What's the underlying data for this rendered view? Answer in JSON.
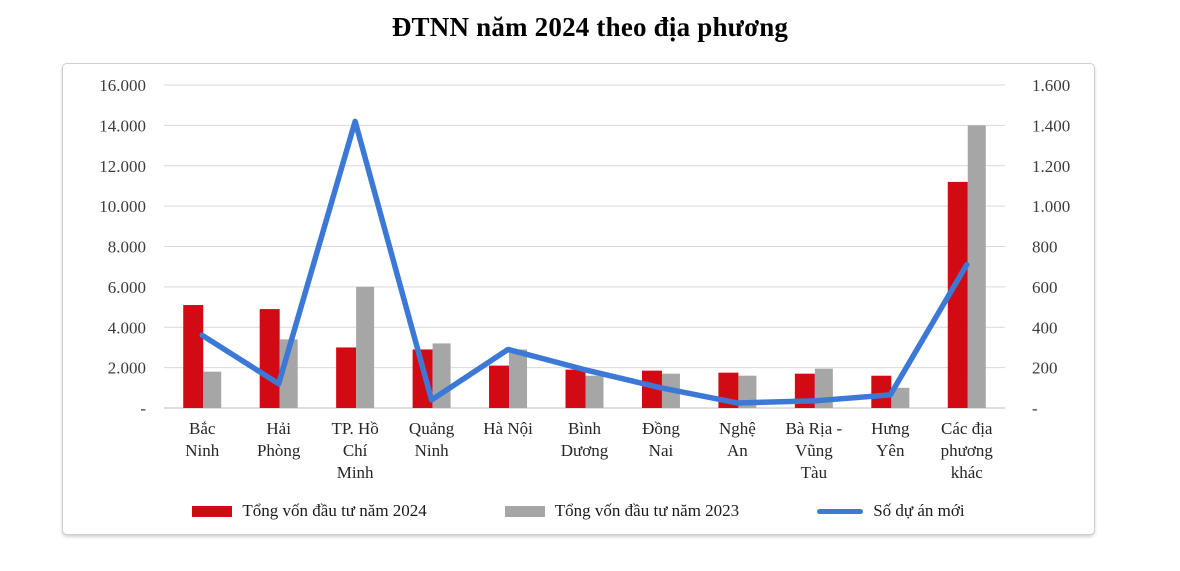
{
  "title": "ĐTNN năm 2024 theo địa phương",
  "colors": {
    "bar_2024": "#d20a13",
    "bar_2023": "#a6a6a6",
    "line_new_projects": "#3c79d6",
    "gridline": "#d9d9d9",
    "axis_line": "#bfbfbf",
    "tick_text": "#3c3c3c",
    "category_text": "#262626"
  },
  "chart_data": {
    "type": "bar",
    "subtype": "combo-bar-line-dual-axis",
    "title": "ĐTNN năm 2024 theo địa phương",
    "grid": true,
    "legend_position": "bottom",
    "categories": [
      "Bắc Ninh",
      "Hải Phòng",
      "TP. Hồ Chí Minh",
      "Quảng Ninh",
      "Hà Nội",
      "Bình Dương",
      "Đồng Nai",
      "Nghệ An",
      "Bà Rịa - Vũng Tàu",
      "Hưng Yên",
      "Các địa phương khác"
    ],
    "category_label_lines": [
      [
        "Bắc",
        "Ninh"
      ],
      [
        "Hải",
        "Phòng"
      ],
      [
        "TP. Hồ",
        "Chí",
        "Minh"
      ],
      [
        "Quảng",
        "Ninh"
      ],
      [
        "Hà Nội"
      ],
      [
        "Bình",
        "Dương"
      ],
      [
        "Đồng",
        "Nai"
      ],
      [
        "Nghệ",
        "An"
      ],
      [
        "Bà Rịa -",
        "Vũng",
        "Tàu"
      ],
      [
        "Hưng",
        "Yên"
      ],
      [
        "Các địa",
        "phương",
        "khác"
      ]
    ],
    "series": [
      {
        "name": "Tổng vốn đầu tư năm 2024",
        "type": "bar",
        "axis": "left",
        "color": "#d20a13",
        "values": [
          5100,
          4900,
          3000,
          2900,
          2100,
          1900,
          1850,
          1750,
          1700,
          1600,
          11200
        ]
      },
      {
        "name": "Tổng vốn đầu tư năm 2023",
        "type": "bar",
        "axis": "left",
        "color": "#a6a6a6",
        "values": [
          1800,
          3400,
          6000,
          3200,
          2900,
          1600,
          1700,
          1600,
          1950,
          1000,
          14000
        ]
      },
      {
        "name": "Số dự án mới",
        "type": "line",
        "axis": "right",
        "color": "#3c79d6",
        "values": [
          360,
          120,
          1420,
          40,
          290,
          190,
          100,
          25,
          35,
          65,
          710
        ]
      }
    ],
    "left_axis": {
      "min": 0,
      "max": 16000,
      "step": 2000,
      "tick_labels_top_to_bottom": [
        "16.000",
        "14.000",
        "12.000",
        "10.000",
        "8.000",
        "6.000",
        "4.000",
        "2.000",
        "-"
      ]
    },
    "right_axis": {
      "min": 0,
      "max": 1600,
      "step": 200,
      "tick_labels_top_to_bottom": [
        "1.600",
        "1.400",
        "1.200",
        "1.000",
        "800",
        "600",
        "400",
        "200",
        "-"
      ]
    }
  },
  "legend": {
    "items": [
      {
        "label": "Tổng vốn đầu tư năm 2024",
        "swatch": "bar",
        "color": "#d20a13"
      },
      {
        "label": "Tổng vốn đầu tư năm 2023",
        "swatch": "bar",
        "color": "#a6a6a6"
      },
      {
        "label": "Số dự án mới",
        "swatch": "line",
        "color": "#3c79d6"
      }
    ]
  }
}
